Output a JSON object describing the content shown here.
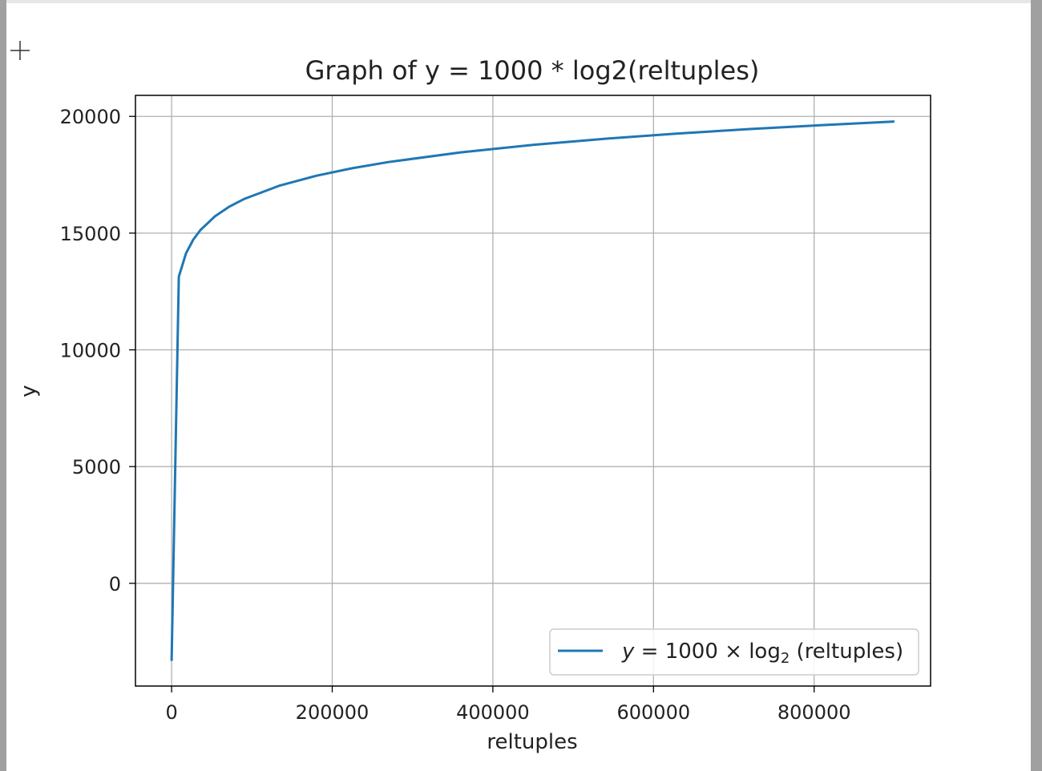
{
  "chart_data": {
    "type": "line",
    "title": "Graph of y = 1000 * log2(reltuples)",
    "xlabel": "reltuples",
    "ylabel": "y",
    "xlim": [
      -45000,
      945000
    ],
    "ylim": [
      -4400,
      20900
    ],
    "xticks": [
      0,
      200000,
      400000,
      600000,
      800000
    ],
    "xtick_labels": [
      "0",
      "200000",
      "400000",
      "600000",
      "800000"
    ],
    "yticks": [
      0,
      5000,
      10000,
      15000,
      20000
    ],
    "ytick_labels": [
      "0",
      "5000",
      "10000",
      "15000",
      "20000"
    ],
    "grid": true,
    "legend": "lower-right",
    "series": [
      {
        "name": "y = 1000 × log₂(reltuples)",
        "color": "#1f77b4",
        "function": "1000*log2(x)",
        "x": [
          0.1,
          9000.1,
          18000.1,
          27000.1,
          36000.1,
          54000.1,
          72000.1,
          90000.1,
          135000.1,
          180000.1,
          225000.1,
          270000.1,
          360000.1,
          450000.1,
          540000.1,
          630000.1,
          720000.1,
          810000.1,
          900000.0
        ],
        "values": [
          -3322,
          13136,
          14136,
          14721,
          15136,
          15721,
          16136,
          16458,
          17043,
          17458,
          17780,
          18043,
          18458,
          18780,
          19043,
          19265,
          19458,
          19628,
          19780
        ]
      }
    ]
  },
  "legend_parts": {
    "lhs": "y",
    "eq": " = 1000 × log",
    "sub": "2",
    "rhs": " (reltuples)"
  },
  "colors": {
    "series": "#1f77b4",
    "grid": "#b0b0b0",
    "axes": "#000000"
  }
}
